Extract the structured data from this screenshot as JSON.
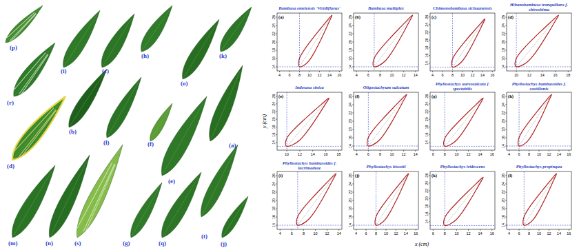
{
  "photo": {
    "labels": [
      "(p)",
      "(i)",
      "(c)",
      "(h)",
      "(k)",
      "(o)",
      "(r)",
      "(b)",
      "(l)",
      "(f)",
      "(a)",
      "(d)",
      "(e)",
      "(m)",
      "(n)",
      "(s)",
      "(g)",
      "(q)",
      "(t)",
      "(j)"
    ]
  },
  "shared_axes": {
    "xlabel": "x (cm)",
    "ylabel": "y (cm)"
  },
  "chart_data": [
    {
      "type": "line",
      "panel_label": "(a)",
      "title": "Bambusa emeiensis 'Viridiflavus'",
      "xlim": [
        3.5,
        16.5
      ],
      "xticks": [
        4,
        6,
        8,
        10,
        12,
        14,
        16
      ],
      "ylim": [
        13,
        27
      ],
      "yticks": [
        14,
        16,
        18,
        20,
        22,
        24,
        26
      ],
      "ref_x": 8,
      "ref_y": 14,
      "outline": {
        "x": [
          8,
          7.79,
          8.09,
          9.02,
          10.5,
          12.06,
          13.26,
          14.5,
          13.79,
          13.04,
          12,
          10.88,
          9.86,
          8.86
        ],
        "y": [
          14,
          14.9,
          16.34,
          18.23,
          20.64,
          23,
          24.76,
          26.5,
          24.49,
          22.5,
          19.86,
          17.27,
          15.41,
          14.35
        ]
      }
    },
    {
      "type": "line",
      "panel_label": "(b)",
      "title": "Bambusa multiplex",
      "xlim": [
        3.5,
        14.5
      ],
      "xticks": [
        4,
        6,
        8,
        10,
        12,
        14
      ],
      "ylim": [
        13,
        27
      ],
      "yticks": [
        14,
        16,
        18,
        20,
        22,
        24,
        26
      ],
      "ref_x": 7,
      "ref_y": 14,
      "outline": {
        "x": [
          7,
          6.79,
          7.09,
          8.02,
          9.5,
          11.06,
          12.26,
          13.5,
          12.79,
          12.04,
          11,
          9.88,
          8.86,
          7.86
        ],
        "y": [
          14,
          14.9,
          16.34,
          18.23,
          20.64,
          23,
          24.76,
          26.5,
          24.49,
          22.5,
          19.86,
          17.27,
          15.41,
          14.35
        ]
      }
    },
    {
      "type": "line",
      "panel_label": "(c)",
      "title": "Chimonobambusa sichuanensis",
      "xlim": [
        3.5,
        16.5
      ],
      "xticks": [
        4,
        6,
        8,
        10,
        12,
        14,
        16
      ],
      "ylim": [
        12,
        27
      ],
      "yticks": [
        14,
        16,
        18,
        20,
        22,
        24,
        26
      ],
      "ref_x": 8,
      "ref_y": 13,
      "outline": {
        "x": [
          8,
          7.79,
          8.09,
          9.02,
          10.5,
          12.06,
          13.26,
          14.5,
          13.79,
          13.04,
          12,
          10.88,
          9.86,
          8.86
        ],
        "y": [
          13,
          13.9,
          15.34,
          17.23,
          19.64,
          22,
          23.76,
          25.5,
          23.49,
          21.5,
          18.86,
          16.27,
          14.41,
          13.35
        ]
      }
    },
    {
      "type": "line",
      "panel_label": "(d)",
      "title": "Hibanobambusa tranquillans f. shiroshima",
      "xlim": [
        8.5,
        18.5
      ],
      "xticks": [
        10,
        12,
        14,
        16,
        18
      ],
      "ylim": [
        13,
        27
      ],
      "yticks": [
        14,
        16,
        18,
        20,
        22,
        24,
        26
      ],
      "ref_x": 10,
      "ref_y": 14,
      "outline": {
        "x": [
          10,
          9.79,
          10.09,
          11.02,
          12.5,
          14.06,
          15.26,
          16.5,
          15.79,
          15.04,
          14,
          12.88,
          11.86,
          10.86
        ],
        "y": [
          14,
          14.9,
          16.34,
          18.23,
          20.64,
          23,
          24.76,
          26.5,
          24.49,
          22.5,
          19.86,
          17.27,
          15.41,
          14.35
        ]
      }
    },
    {
      "type": "line",
      "panel_label": "(e)",
      "title": "Indosasa sinica",
      "xlim": [
        8.5,
        18.5
      ],
      "xticks": [
        10,
        12,
        14,
        16,
        18
      ],
      "ylim": [
        12,
        27
      ],
      "yticks": [
        14,
        16,
        18,
        20,
        22,
        24,
        26
      ],
      "ref_x": 10,
      "ref_y": 13,
      "outline": {
        "x": [
          10,
          9.79,
          10.09,
          11.02,
          12.5,
          14.06,
          15.26,
          16.5,
          15.79,
          15.04,
          14,
          12.88,
          11.86,
          10.86
        ],
        "y": [
          13,
          13.9,
          15.34,
          17.23,
          19.64,
          22,
          23.76,
          25.5,
          23.49,
          21.5,
          18.86,
          16.27,
          14.41,
          13.35
        ]
      }
    },
    {
      "type": "line",
      "panel_label": "(f)",
      "title": "Oligostachyum sulcatum",
      "xlim": [
        3.5,
        14.5
      ],
      "xticks": [
        4,
        6,
        8,
        10,
        12,
        14
      ],
      "ylim": [
        13,
        27
      ],
      "yticks": [
        14,
        16,
        18,
        20,
        22,
        24,
        26
      ],
      "ref_x": 6,
      "ref_y": 14,
      "outline": {
        "x": [
          6,
          5.79,
          6.09,
          7.02,
          8.5,
          10.06,
          11.26,
          12.5,
          11.79,
          11.04,
          10,
          8.88,
          7.86,
          6.86
        ],
        "y": [
          14,
          14.9,
          16.34,
          18.23,
          20.64,
          23,
          24.76,
          26.5,
          24.49,
          22.5,
          19.86,
          17.27,
          15.41,
          14.35
        ]
      }
    },
    {
      "type": "line",
      "panel_label": "(g)",
      "title": "Phyllostachys aureosulcata f. spectabilis",
      "xlim": [
        5.5,
        16.5
      ],
      "xticks": [
        6,
        8,
        10,
        12,
        14,
        16
      ],
      "ylim": [
        12,
        27
      ],
      "yticks": [
        14,
        16,
        18,
        20,
        22,
        24,
        26
      ],
      "ref_x": 8,
      "ref_y": 13,
      "outline": {
        "x": [
          8,
          7.79,
          8.09,
          9.02,
          10.5,
          12.06,
          13.26,
          14.5,
          13.79,
          13.04,
          12,
          10.88,
          9.86,
          8.86
        ],
        "y": [
          13,
          13.9,
          15.34,
          17.23,
          19.64,
          22,
          23.76,
          25.5,
          23.49,
          21.5,
          18.86,
          16.27,
          14.41,
          13.35
        ]
      }
    },
    {
      "type": "line",
      "panel_label": "(h)",
      "title": "Phyllostachys bambusoides f. castillonis",
      "xlim": [
        3.5,
        16.5
      ],
      "xticks": [
        4,
        6,
        8,
        10,
        12,
        14,
        16
      ],
      "ylim": [
        13,
        27
      ],
      "yticks": [
        14,
        16,
        18,
        20,
        22,
        24,
        26
      ],
      "ref_x": 6,
      "ref_y": 14,
      "outline": {
        "x": [
          6,
          5.79,
          6.09,
          7.02,
          8.5,
          10.06,
          11.26,
          12.5,
          11.79,
          11.04,
          10,
          8.88,
          7.86,
          6.86
        ],
        "y": [
          14,
          14.9,
          16.34,
          18.23,
          20.64,
          23,
          24.76,
          26.5,
          24.49,
          22.5,
          19.86,
          17.27,
          15.41,
          14.35
        ]
      }
    },
    {
      "type": "line",
      "panel_label": "(i)",
      "title": "Phyllostachys bambusoides f. lacrimadeae",
      "xlim": [
        3.5,
        14.5
      ],
      "xticks": [
        4,
        6,
        8,
        10,
        12,
        14
      ],
      "ylim": [
        13,
        27
      ],
      "yticks": [
        14,
        16,
        18,
        20,
        22,
        24,
        26
      ],
      "ref_x": 7,
      "ref_y": 14,
      "outline": {
        "x": [
          7,
          6.79,
          7.09,
          8.02,
          9.5,
          11.06,
          12.26,
          13.5,
          12.79,
          12.04,
          11,
          9.88,
          8.86,
          7.86
        ],
        "y": [
          14,
          14.9,
          16.34,
          18.23,
          20.64,
          23,
          24.76,
          26.5,
          24.49,
          22.5,
          19.86,
          17.27,
          15.41,
          14.35
        ]
      }
    },
    {
      "type": "line",
      "panel_label": "(j)",
      "title": "Phyllostachys bissetii",
      "xlim": [
        3.5,
        16.5
      ],
      "xticks": [
        4,
        6,
        8,
        10,
        12,
        14,
        16
      ],
      "ylim": [
        13,
        27
      ],
      "yticks": [
        14,
        16,
        18,
        20,
        22,
        24,
        26
      ],
      "ref_x": 8,
      "ref_y": 14,
      "outline": {
        "x": [
          8,
          7.79,
          8.09,
          9.02,
          10.5,
          12.06,
          13.26,
          14.5,
          13.79,
          13.04,
          12,
          10.88,
          9.86,
          8.86
        ],
        "y": [
          14,
          14.9,
          16.34,
          18.23,
          20.64,
          23,
          24.76,
          26.5,
          24.49,
          22.5,
          19.86,
          17.27,
          15.41,
          14.35
        ]
      }
    },
    {
      "type": "line",
      "panel_label": "(k)",
      "title": "Phyllostachys iridescens",
      "xlim": [
        5.5,
        16.5
      ],
      "xticks": [
        6,
        8,
        10,
        12,
        14,
        16
      ],
      "ylim": [
        12,
        27
      ],
      "yticks": [
        14,
        16,
        18,
        20,
        22,
        24,
        26
      ],
      "ref_x": 8,
      "ref_y": 13,
      "outline": {
        "x": [
          8,
          7.79,
          8.09,
          9.02,
          10.5,
          12.06,
          13.26,
          14.5,
          13.79,
          13.04,
          12,
          10.88,
          9.86,
          8.86
        ],
        "y": [
          13,
          13.9,
          15.34,
          17.23,
          19.64,
          22,
          23.76,
          25.5,
          23.49,
          21.5,
          18.86,
          16.27,
          14.41,
          13.35
        ]
      }
    },
    {
      "type": "line",
      "panel_label": "(l)",
      "title": "Phyllostachys propinqua",
      "xlim": [
        3.5,
        16.5
      ],
      "xticks": [
        4,
        6,
        8,
        10,
        12,
        14,
        16
      ],
      "ylim": [
        13,
        27
      ],
      "yticks": [
        14,
        16,
        18,
        20,
        22,
        24,
        26
      ],
      "ref_x": 7,
      "ref_y": 14,
      "outline": {
        "x": [
          7,
          6.79,
          7.09,
          8.02,
          9.5,
          11.06,
          12.26,
          13.5,
          12.79,
          12.04,
          11,
          9.88,
          8.86,
          7.86
        ],
        "y": [
          14,
          14.9,
          16.34,
          18.23,
          20.64,
          23,
          24.76,
          26.5,
          24.49,
          22.5,
          19.86,
          17.27,
          15.41,
          14.35
        ]
      }
    }
  ]
}
